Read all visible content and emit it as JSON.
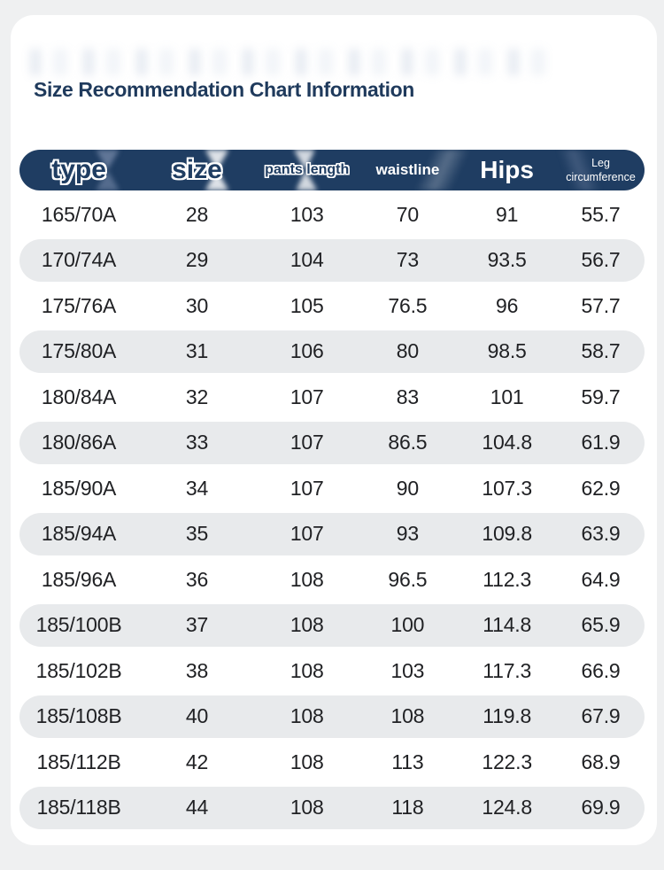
{
  "title": "Size Recommendation Chart Information",
  "colors": {
    "page_bg": "#eff0f1",
    "card_bg": "#ffffff",
    "title_color": "#1f3a5c",
    "bar_color": "#1f3d62",
    "header_text": "#ffffff",
    "stripe_color": "#e8eaec",
    "cell_text": "#202124"
  },
  "header": {
    "columns": [
      {
        "key": "type",
        "label": "type",
        "style": "xl-outline"
      },
      {
        "key": "size",
        "label": "size",
        "style": "xl-outline"
      },
      {
        "key": "pants-length",
        "label": "pants length",
        "style": "sm-outline"
      },
      {
        "key": "waistline",
        "label": "waistline",
        "style": "md-plain"
      },
      {
        "key": "hips",
        "label": "Hips",
        "style": "lg-plain"
      },
      {
        "key": "leg-circumference",
        "label": "Leg circumference",
        "style": "xs-plain"
      }
    ]
  },
  "chart_data": {
    "type": "table",
    "title": "Size Recommendation Chart Information",
    "columns": [
      "type",
      "size",
      "pants length",
      "waistline",
      "Hips",
      "Leg circumference"
    ],
    "rows": [
      [
        "165/70A",
        "28",
        "103",
        "70",
        "91",
        "55.7"
      ],
      [
        "170/74A",
        "29",
        "104",
        "73",
        "93.5",
        "56.7"
      ],
      [
        "175/76A",
        "30",
        "105",
        "76.5",
        "96",
        "57.7"
      ],
      [
        "175/80A",
        "31",
        "106",
        "80",
        "98.5",
        "58.7"
      ],
      [
        "180/84A",
        "32",
        "107",
        "83",
        "101",
        "59.7"
      ],
      [
        "180/86A",
        "33",
        "107",
        "86.5",
        "104.8",
        "61.9"
      ],
      [
        "185/90A",
        "34",
        "107",
        "90",
        "107.3",
        "62.9"
      ],
      [
        "185/94A",
        "35",
        "107",
        "93",
        "109.8",
        "63.9"
      ],
      [
        "185/96A",
        "36",
        "108",
        "96.5",
        "112.3",
        "64.9"
      ],
      [
        "185/100B",
        "37",
        "108",
        "100",
        "114.8",
        "65.9"
      ],
      [
        "185/102B",
        "38",
        "108",
        "103",
        "117.3",
        "66.9"
      ],
      [
        "185/108B",
        "40",
        "108",
        "108",
        "119.8",
        "67.9"
      ],
      [
        "185/112B",
        "42",
        "108",
        "113",
        "122.3",
        "68.9"
      ],
      [
        "185/118B",
        "44",
        "108",
        "118",
        "124.8",
        "69.9"
      ]
    ],
    "stripe_pattern": "even rows shaded",
    "legend_position": "none",
    "grid": false
  }
}
